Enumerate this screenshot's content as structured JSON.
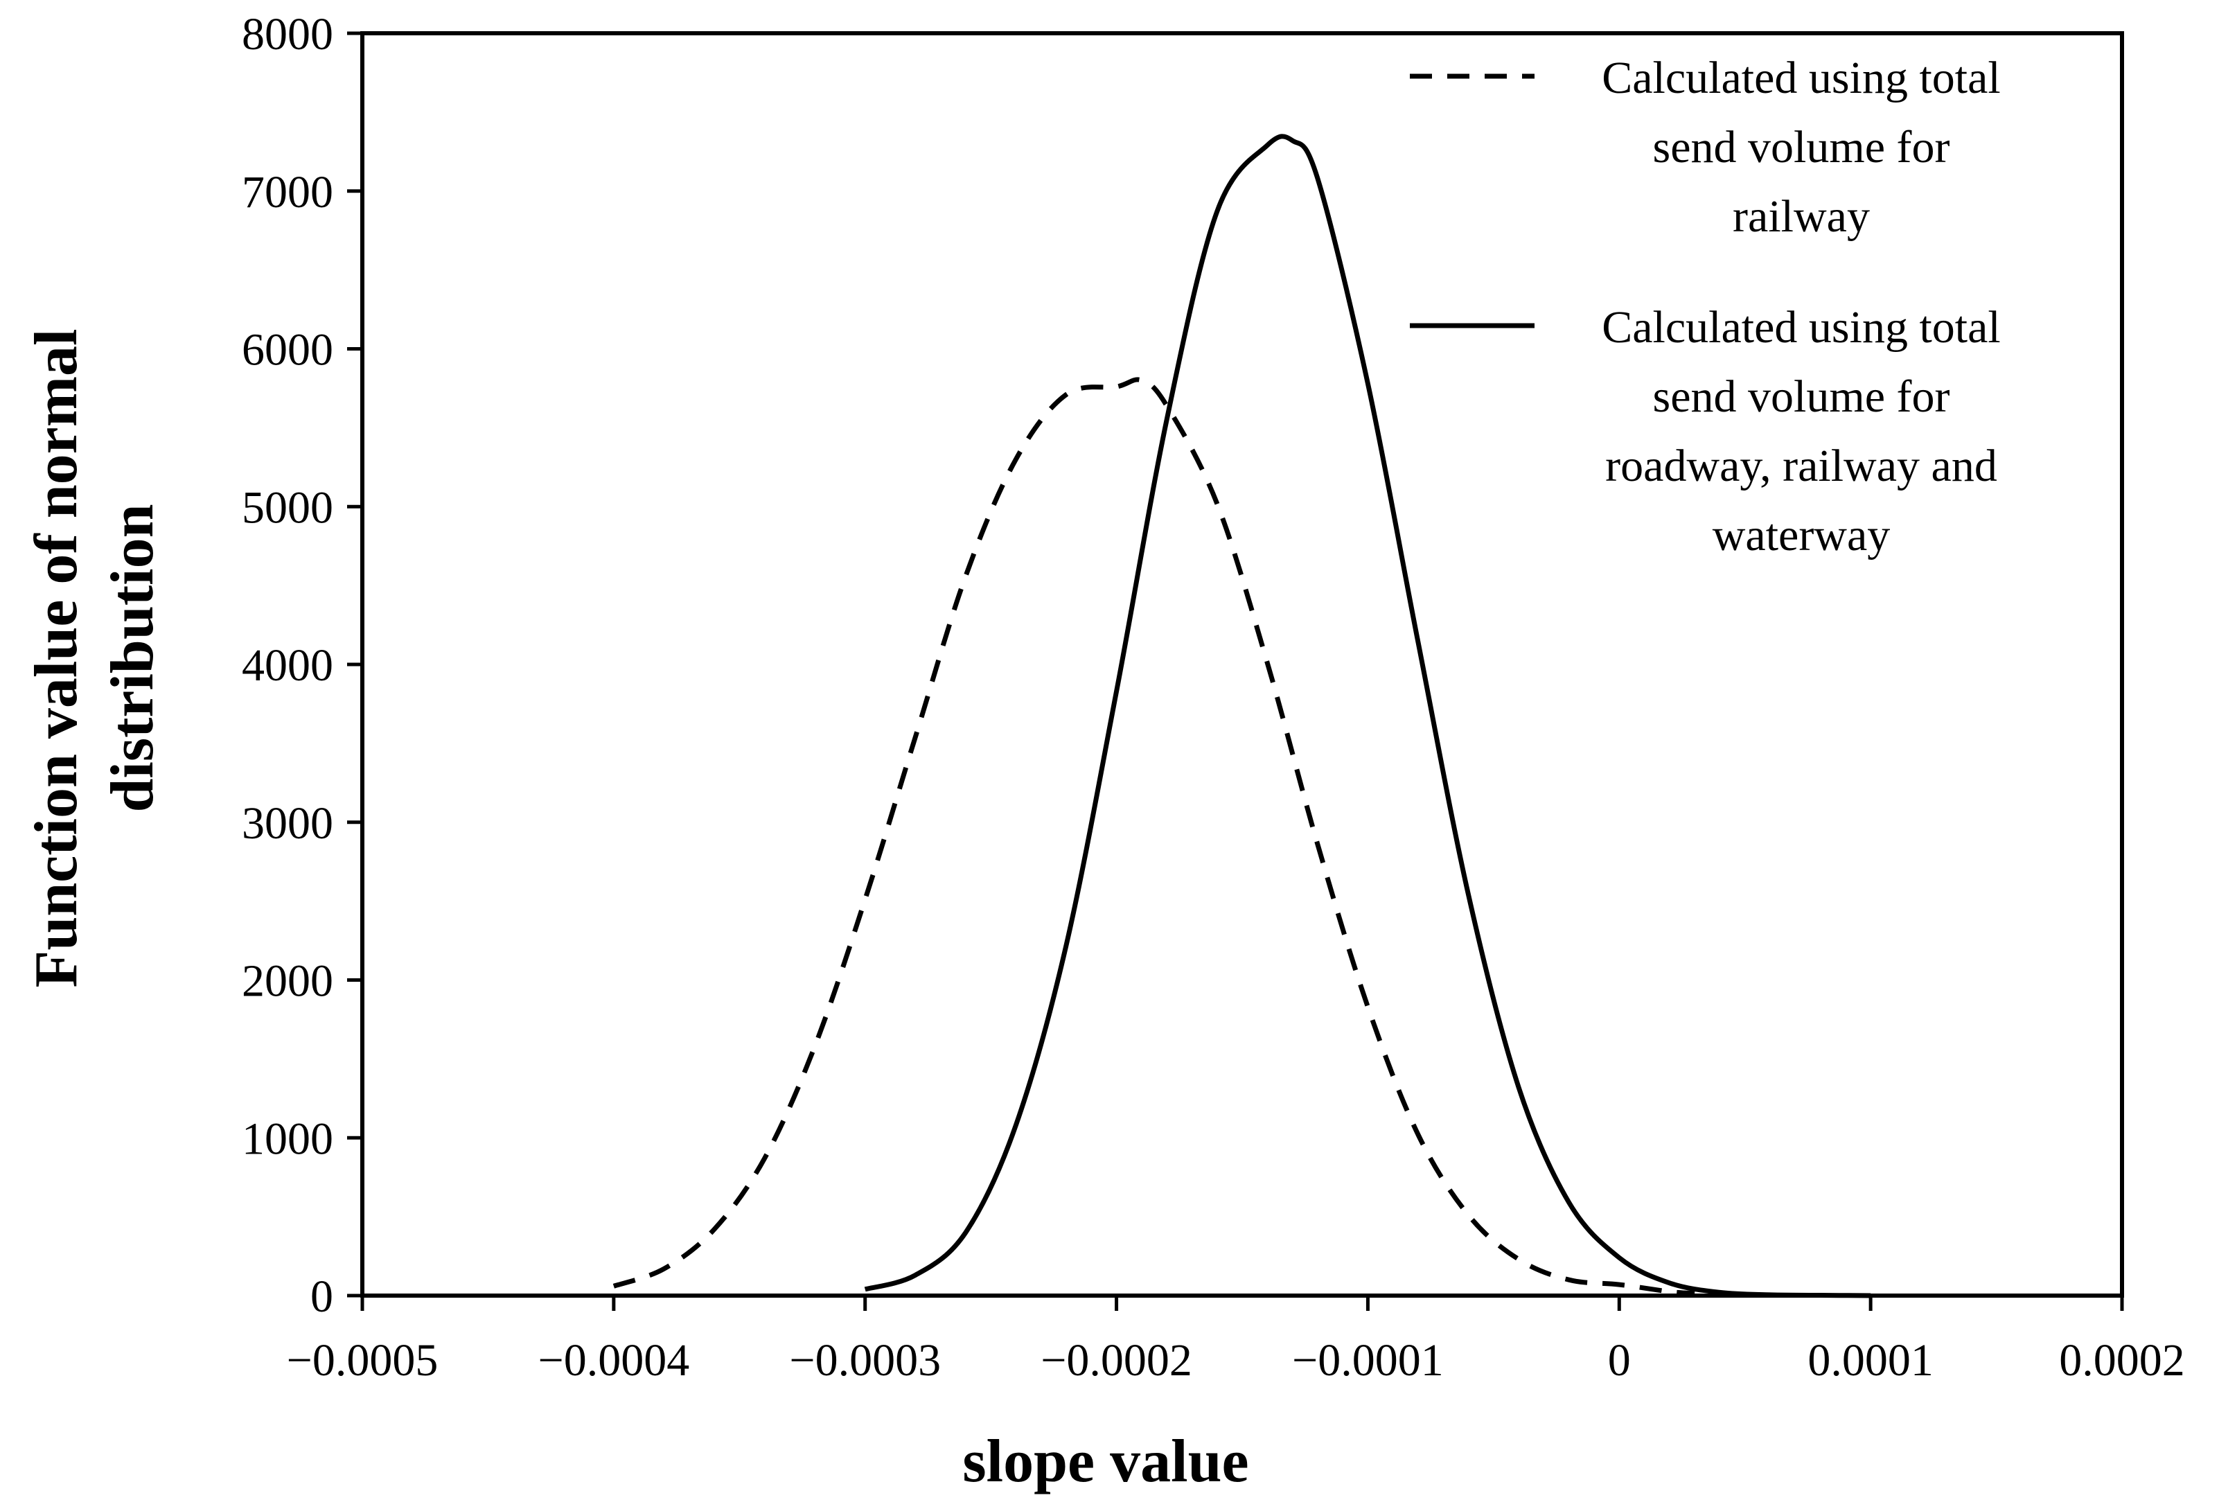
{
  "chart_data": {
    "type": "line",
    "title": "",
    "xlabel": "slope value",
    "ylabel": [
      "Function value of normal",
      "distribution"
    ],
    "xlim": [
      -0.0005,
      0.0002
    ],
    "ylim": [
      0,
      8000
    ],
    "x_ticks": [
      -0.0005,
      -0.0004,
      -0.0003,
      -0.0002,
      -0.0001,
      0,
      0.0001,
      0.0002
    ],
    "x_tick_labels": [
      "−0.0005",
      "−0.0004",
      "−0.0003",
      "−0.0002",
      "−0.0001",
      "0",
      "0.0001",
      "0.0002"
    ],
    "y_ticks": [
      0,
      1000,
      2000,
      3000,
      4000,
      5000,
      6000,
      7000,
      8000
    ],
    "y_tick_labels": [
      "0",
      "1000",
      "2000",
      "3000",
      "4000",
      "5000",
      "6000",
      "7000",
      "8000"
    ],
    "grid": false,
    "legend_position": "top-right",
    "series": [
      {
        "name": "Calculated using total send volume for railway",
        "legend_lines": [
          "Calculated using total",
          "send volume for",
          "railway"
        ],
        "style": "dashed",
        "color": "#000000",
        "x": [
          -0.0004,
          -0.00038,
          -0.00036,
          -0.00034,
          -0.00032,
          -0.0003,
          -0.00028,
          -0.00026,
          -0.00024,
          -0.00022,
          -0.0002,
          -0.00019,
          -0.00018,
          -0.00016,
          -0.00014,
          -0.00012,
          -0.0001,
          -8e-05,
          -6e-05,
          -4e-05,
          -2e-05,
          0,
          2e-05,
          3e-05
        ],
        "y": [
          60,
          170,
          420,
          870,
          1580,
          2510,
          3540,
          4560,
          5300,
          5710,
          5760,
          5800,
          5640,
          5020,
          4010,
          2860,
          1830,
          1020,
          510,
          230,
          100,
          70,
          25,
          15
        ]
      },
      {
        "name": "Calculated using total send volume for roadway, railway and waterway",
        "legend_lines": [
          "Calculated using total",
          "send volume for",
          "roadway, railway and",
          "waterway"
        ],
        "style": "solid",
        "color": "#000000",
        "x": [
          -0.0003,
          -0.00028,
          -0.00026,
          -0.00024,
          -0.00022,
          -0.0002,
          -0.00018,
          -0.00016,
          -0.00014,
          -0.00013,
          -0.00012,
          -0.0001,
          -8e-05,
          -6e-05,
          -4e-05,
          -2e-05,
          0,
          2e-05,
          4e-05,
          6e-05,
          8e-05,
          0.0001
        ],
        "y": [
          40,
          130,
          400,
          1080,
          2220,
          3830,
          5550,
          6870,
          7290,
          7320,
          7080,
          5780,
          4140,
          2540,
          1320,
          590,
          240,
          80,
          20,
          5,
          2,
          0
        ]
      }
    ]
  }
}
